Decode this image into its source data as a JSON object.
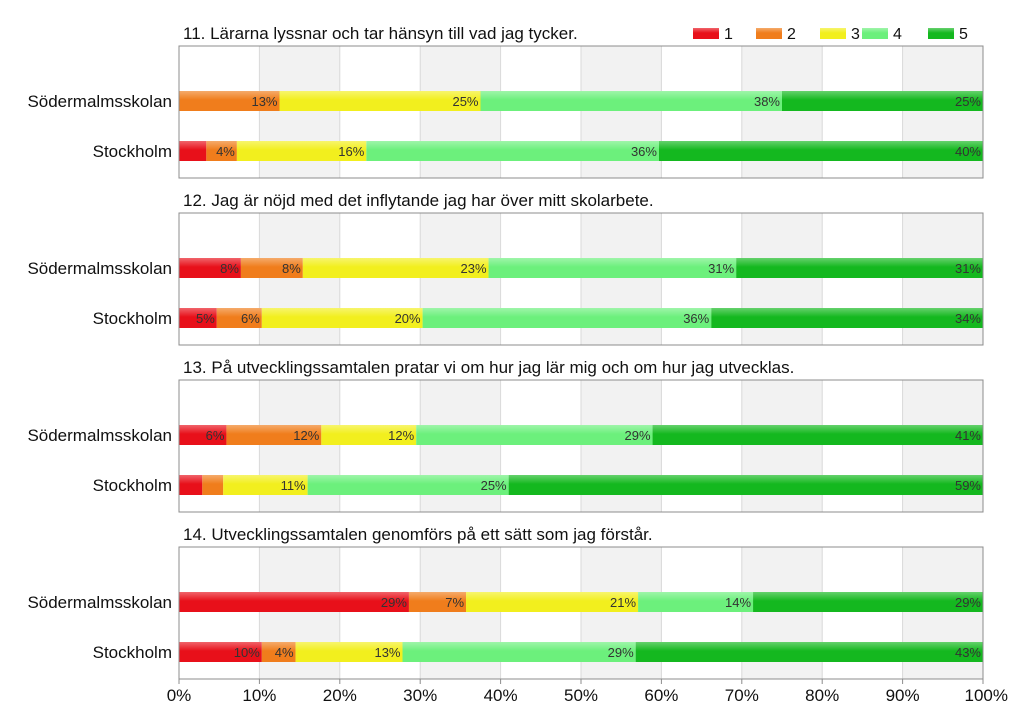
{
  "legend": {
    "placement": "top-right",
    "items": [
      {
        "label": "1",
        "color": "#e8101a"
      },
      {
        "label": "2",
        "color": "#f07d1c"
      },
      {
        "label": "3",
        "color": "#f2ef1e"
      },
      {
        "label": "4",
        "color": "#6cf07c"
      },
      {
        "label": "5",
        "color": "#14b81f"
      }
    ]
  },
  "x_ticks": [
    "0%",
    "10%",
    "20%",
    "30%",
    "40%",
    "50%",
    "60%",
    "70%",
    "80%",
    "90%",
    "100%"
  ],
  "chart_data": [
    {
      "type": "bar",
      "stacked": true,
      "orientation": "horizontal",
      "title": "11. Lärarna lyssnar och tar hänsyn till vad jag tycker.",
      "categories": [
        "Södermalmsskolan",
        "Stockholm"
      ],
      "xlim": [
        0,
        100
      ],
      "grid": true,
      "series": [
        {
          "name": "1",
          "values": [
            0,
            3.4
          ],
          "labels": [
            "",
            ""
          ]
        },
        {
          "name": "2",
          "values": [
            12.5,
            3.8
          ],
          "labels": [
            "13%",
            "4%"
          ]
        },
        {
          "name": "3",
          "values": [
            25,
            16.1
          ],
          "labels": [
            "25%",
            "16%"
          ]
        },
        {
          "name": "4",
          "values": [
            37.5,
            36.4
          ],
          "labels": [
            "38%",
            "36%"
          ]
        },
        {
          "name": "5",
          "values": [
            25,
            40.3
          ],
          "labels": [
            "25%",
            "40%"
          ]
        }
      ]
    },
    {
      "type": "bar",
      "stacked": true,
      "orientation": "horizontal",
      "title": "12. Jag är nöjd med det inflytande jag har över mitt skolarbete.",
      "categories": [
        "Södermalmsskolan",
        "Stockholm"
      ],
      "xlim": [
        0,
        100
      ],
      "grid": true,
      "series": [
        {
          "name": "1",
          "values": [
            7.7,
            4.7
          ],
          "labels": [
            "8%",
            "5%"
          ]
        },
        {
          "name": "2",
          "values": [
            7.7,
            5.6
          ],
          "labels": [
            "8%",
            "6%"
          ]
        },
        {
          "name": "3",
          "values": [
            23.1,
            20
          ],
          "labels": [
            "23%",
            "20%"
          ]
        },
        {
          "name": "4",
          "values": [
            30.8,
            35.9
          ],
          "labels": [
            "31%",
            "36%"
          ]
        },
        {
          "name": "5",
          "values": [
            30.7,
            33.8
          ],
          "labels": [
            "31%",
            "34%"
          ]
        }
      ]
    },
    {
      "type": "bar",
      "stacked": true,
      "orientation": "horizontal",
      "title": "13. På utvecklingssamtalen pratar vi om hur jag lär mig och om hur jag utvecklas.",
      "categories": [
        "Södermalmsskolan",
        "Stockholm"
      ],
      "xlim": [
        0,
        100
      ],
      "grid": true,
      "series": [
        {
          "name": "1",
          "values": [
            5.9,
            2.9
          ],
          "labels": [
            "6%",
            ""
          ]
        },
        {
          "name": "2",
          "values": [
            11.8,
            2.6
          ],
          "labels": [
            "12%",
            ""
          ]
        },
        {
          "name": "3",
          "values": [
            11.8,
            10.5
          ],
          "labels": [
            "12%",
            "11%"
          ]
        },
        {
          "name": "4",
          "values": [
            29.4,
            25
          ],
          "labels": [
            "29%",
            "25%"
          ]
        },
        {
          "name": "5",
          "values": [
            41.1,
            59
          ],
          "labels": [
            "41%",
            "59%"
          ]
        }
      ]
    },
    {
      "type": "bar",
      "stacked": true,
      "orientation": "horizontal",
      "title": "14. Utvecklingssamtalen genomförs på ett sätt som jag förstår.",
      "categories": [
        "Södermalmsskolan",
        "Stockholm"
      ],
      "xlim": [
        0,
        100
      ],
      "grid": true,
      "series": [
        {
          "name": "1",
          "values": [
            28.6,
            10.3
          ],
          "labels": [
            "29%",
            "10%"
          ]
        },
        {
          "name": "2",
          "values": [
            7.1,
            4.2
          ],
          "labels": [
            "7%",
            "4%"
          ]
        },
        {
          "name": "3",
          "values": [
            21.4,
            13.3
          ],
          "labels": [
            "21%",
            "13%"
          ]
        },
        {
          "name": "4",
          "values": [
            14.3,
            29
          ],
          "labels": [
            "14%",
            "29%"
          ]
        },
        {
          "name": "5",
          "values": [
            28.6,
            43.2
          ],
          "labels": [
            "29%",
            "43%"
          ]
        }
      ]
    }
  ]
}
